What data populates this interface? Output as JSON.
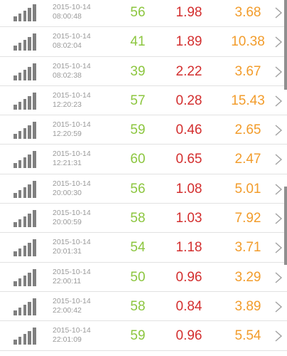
{
  "colors": {
    "value1": "#8cc63f",
    "value2": "#d32f2f",
    "value3": "#f29c2b",
    "icon": "#808080",
    "divider": "#e2e2e2"
  },
  "row_icons": {
    "left": "signal-strength-icon",
    "right": "chevron-right-icon"
  },
  "rows": [
    {
      "date": "2015-10-14",
      "time": "08:00:48",
      "v1": "56",
      "v2": "1.98",
      "v3": "3.68"
    },
    {
      "date": "2015-10-14",
      "time": "08:02:04",
      "v1": "41",
      "v2": "1.89",
      "v3": "10.38"
    },
    {
      "date": "2015-10-14",
      "time": "08:02:38",
      "v1": "39",
      "v2": "2.22",
      "v3": "3.67"
    },
    {
      "date": "2015-10-14",
      "time": "12:20:23",
      "v1": "57",
      "v2": "0.28",
      "v3": "15.43"
    },
    {
      "date": "2015-10-14",
      "time": "12:20:59",
      "v1": "59",
      "v2": "0.46",
      "v3": "2.65"
    },
    {
      "date": "2015-10-14",
      "time": "12:21:31",
      "v1": "60",
      "v2": "0.65",
      "v3": "2.47"
    },
    {
      "date": "2015-10-14",
      "time": "20:00:30",
      "v1": "56",
      "v2": "1.08",
      "v3": "5.01"
    },
    {
      "date": "2015-10-14",
      "time": "20:00:59",
      "v1": "58",
      "v2": "1.03",
      "v3": "7.92"
    },
    {
      "date": "2015-10-14",
      "time": "20:01:31",
      "v1": "54",
      "v2": "1.18",
      "v3": "3.71"
    },
    {
      "date": "2015-10-14",
      "time": "22:00:11",
      "v1": "50",
      "v2": "0.96",
      "v3": "3.29"
    },
    {
      "date": "2015-10-14",
      "time": "22:00:42",
      "v1": "58",
      "v2": "0.84",
      "v3": "3.89"
    },
    {
      "date": "2015-10-14",
      "time": "22:01:09",
      "v1": "59",
      "v2": "0.96",
      "v3": "5.54"
    }
  ]
}
